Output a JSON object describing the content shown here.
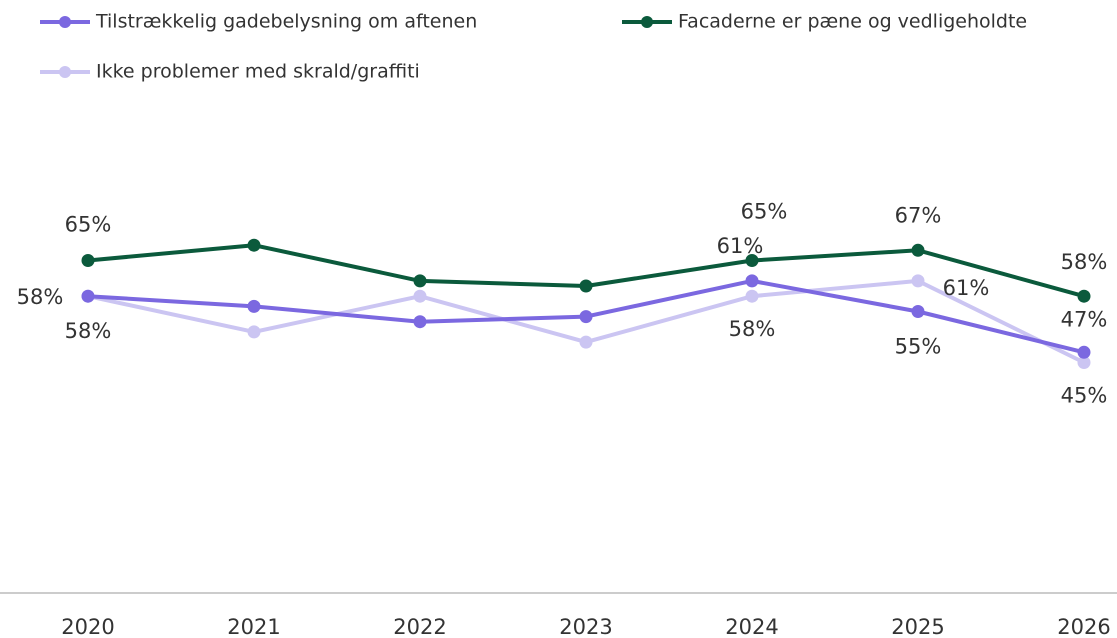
{
  "chart_data": {
    "type": "line",
    "x": [
      "2020",
      "2021",
      "2022",
      "2023",
      "2024",
      "2025",
      "2026"
    ],
    "ylim": [
      0,
      100
    ],
    "series": [
      {
        "name": "Tilstrækkelig gadebelysning om aftenen",
        "color": "#7b68e0",
        "values": [
          58,
          56,
          53,
          54,
          61,
          55,
          47
        ],
        "value_labels": [
          "58%",
          null,
          null,
          null,
          "61%",
          "55%",
          "47%"
        ]
      },
      {
        "name": "Facaderne er pæne og vedligeholdte",
        "color": "#0b5a3c",
        "values": [
          65,
          68,
          61,
          60,
          65,
          67,
          58
        ],
        "value_labels": [
          "65%",
          null,
          null,
          null,
          "65%",
          "67%",
          "58%"
        ]
      },
      {
        "name": "Ikke problemer med skrald/graffiti",
        "color": "#cbc5f2",
        "values": [
          58,
          51,
          58,
          49,
          58,
          61,
          45
        ],
        "value_labels": [
          "58%",
          null,
          null,
          null,
          "58%",
          "61%",
          "45%"
        ]
      }
    ]
  }
}
